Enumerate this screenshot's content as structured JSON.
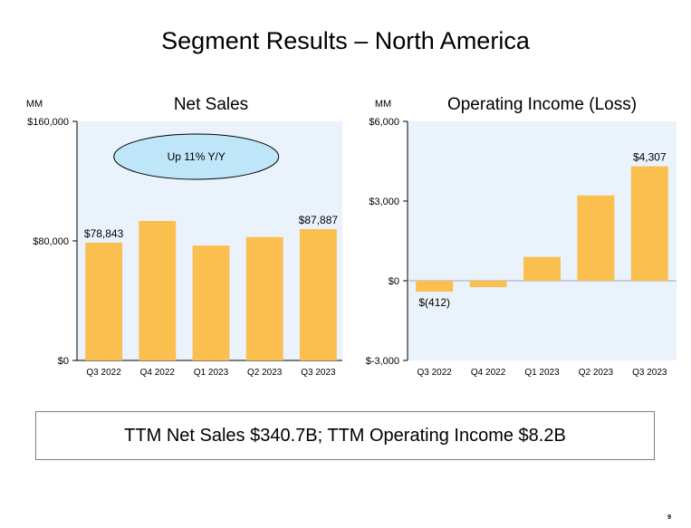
{
  "page": {
    "title": "Segment Results – North America",
    "summary": "TTM Net Sales $340.7B; TTM Operating Income $8.2B",
    "page_number": "9"
  },
  "colors": {
    "bar": "#fabf4f",
    "plot_background": "#eaf2fc",
    "callout_fill": "#bfe6f8",
    "zero_line": "#a0a8b8"
  },
  "chart_data": [
    {
      "type": "bar",
      "title": "Net Sales",
      "unit_label": "MM",
      "categories": [
        "Q3 2022",
        "Q4 2022",
        "Q1 2023",
        "Q2 2023",
        "Q3 2023"
      ],
      "values": [
        78843,
        93319,
        76881,
        82546,
        87887
      ],
      "data_labels": [
        "$78,843",
        "",
        "",
        "",
        "$87,887"
      ],
      "yticks": [
        0,
        80000,
        160000
      ],
      "ytick_labels": [
        "$0",
        "$80,000",
        "$160,000"
      ],
      "ylim": [
        0,
        160000
      ],
      "grid": false,
      "annotation": "Up 11% Y/Y"
    },
    {
      "type": "bar",
      "title": "Operating Income (Loss)",
      "unit_label": "MM",
      "categories": [
        "Q3 2022",
        "Q4 2022",
        "Q1 2023",
        "Q2 2023",
        "Q3 2023"
      ],
      "values": [
        -412,
        -240,
        898,
        3211,
        4307
      ],
      "data_labels": [
        "$(412)",
        "",
        "",
        "",
        "$4,307"
      ],
      "yticks": [
        -3000,
        0,
        3000,
        6000
      ],
      "ytick_labels": [
        "$-3,000",
        "$0",
        "$3,000",
        "$6,000"
      ],
      "ylim": [
        -3000,
        6000
      ],
      "grid": false
    }
  ]
}
